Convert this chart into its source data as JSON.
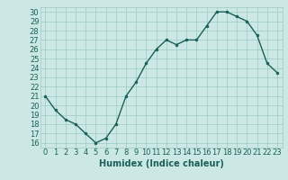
{
  "x": [
    0,
    1,
    2,
    3,
    4,
    5,
    6,
    7,
    8,
    9,
    10,
    11,
    12,
    13,
    14,
    15,
    16,
    17,
    18,
    19,
    20,
    21,
    22,
    23
  ],
  "y": [
    21,
    19.5,
    18.5,
    18,
    17,
    16,
    16.5,
    18,
    21,
    22.5,
    24.5,
    26,
    27,
    26.5,
    27,
    27,
    28.5,
    30,
    30,
    29.5,
    29,
    27.5,
    24.5,
    23.5
  ],
  "line_color": "#1a5f5a",
  "marker": "o",
  "markersize": 2.0,
  "linewidth": 1.0,
  "xlabel": "Humidex (Indice chaleur)",
  "ylim": [
    15.5,
    30.5
  ],
  "xlim": [
    -0.5,
    23.5
  ],
  "yticks": [
    16,
    17,
    18,
    19,
    20,
    21,
    22,
    23,
    24,
    25,
    26,
    27,
    28,
    29,
    30
  ],
  "xtick_labels": [
    "0",
    "1",
    "2",
    "3",
    "4",
    "5",
    "6",
    "7",
    "8",
    "9",
    "10",
    "11",
    "12",
    "13",
    "14",
    "15",
    "16",
    "17",
    "18",
    "19",
    "20",
    "21",
    "22",
    "23"
  ],
  "bg_color": "#cce8e4",
  "grid_color": "#9ecbc5",
  "xlabel_fontsize": 7,
  "tick_fontsize": 6
}
